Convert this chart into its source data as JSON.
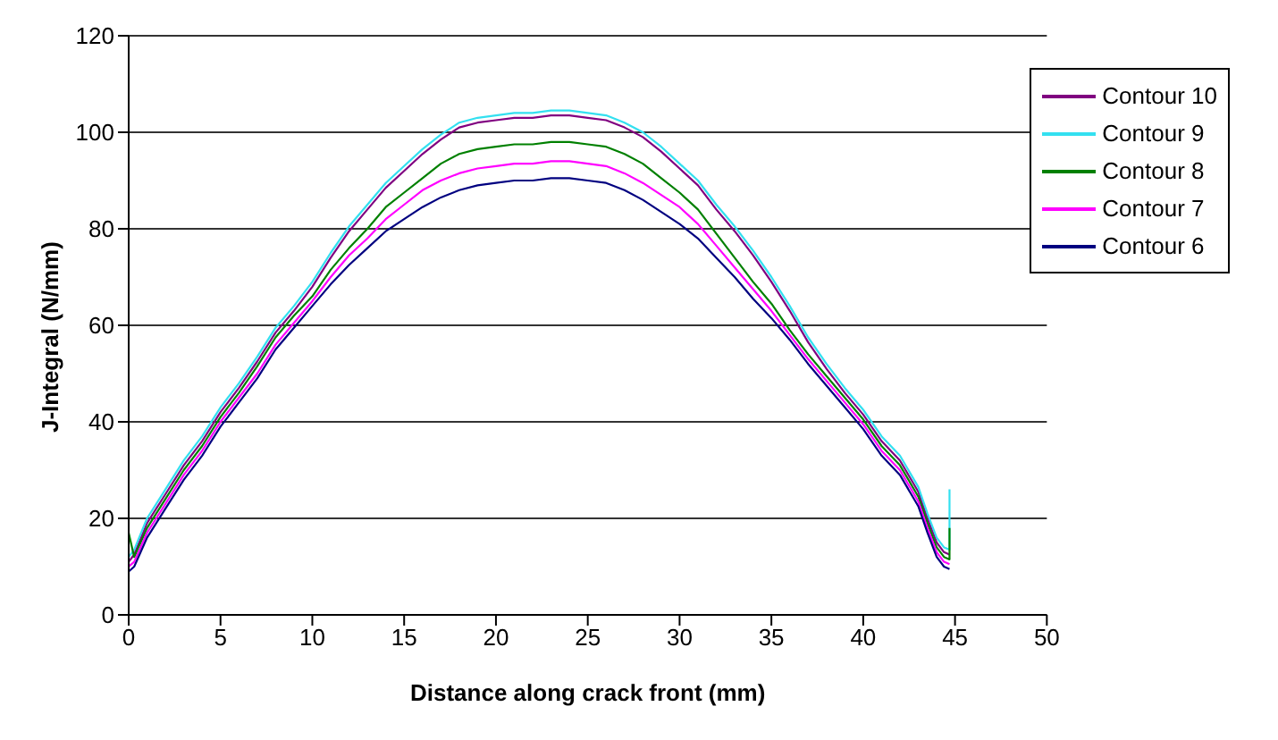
{
  "chart_data": {
    "type": "line",
    "xlabel": "Distance along crack front (mm)",
    "ylabel": "J-Integral (N/mm)",
    "x": [
      0,
      0.3,
      1,
      1.5,
      2,
      3,
      4,
      5,
      6,
      7,
      8,
      9,
      10,
      11,
      12,
      13,
      14,
      15,
      16,
      17,
      18,
      19,
      20,
      21,
      22,
      23,
      24,
      25,
      26,
      27,
      28,
      29,
      30,
      31,
      32,
      33,
      34,
      35,
      36,
      37,
      38,
      39,
      40,
      41,
      42,
      43,
      43.5,
      44,
      44.4,
      44.7,
      44.7
    ],
    "series": [
      {
        "name": "Contour 10",
        "color": "#800080",
        "values": [
          11,
          12.5,
          19,
          22,
          25,
          31,
          36,
          42,
          47,
          52.5,
          58.5,
          63,
          68,
          74,
          79.5,
          84,
          88.5,
          92,
          95.5,
          98.5,
          101,
          102,
          102.5,
          103,
          103,
          103.5,
          103.5,
          103,
          102.5,
          101,
          99,
          96,
          92.5,
          89,
          84,
          79.5,
          74.5,
          69,
          63,
          56.5,
          51,
          46,
          41.5,
          36,
          32,
          25.5,
          20,
          15,
          13,
          12.5,
          12.5
        ]
      },
      {
        "name": "Contour 9",
        "color": "#33e0f0",
        "values": [
          12,
          13.5,
          20,
          23,
          26,
          32,
          37,
          43,
          48,
          53.5,
          59.5,
          64,
          69,
          75,
          80.5,
          85,
          89.5,
          93,
          96.5,
          99.5,
          102,
          103,
          103.5,
          104,
          104,
          104.5,
          104.5,
          104,
          103.5,
          102,
          100,
          97,
          93.5,
          90,
          85,
          80.5,
          75.5,
          70,
          64,
          57.5,
          52,
          47,
          42.5,
          37,
          33,
          26.5,
          21,
          16,
          14,
          13.5,
          26
        ]
      },
      {
        "name": "Contour 8",
        "color": "#008000",
        "values": [
          17,
          12,
          18,
          21,
          24,
          30,
          35,
          41,
          46,
          51.5,
          57.5,
          62,
          66,
          71.5,
          76,
          80,
          84.5,
          87.5,
          90.5,
          93.5,
          95.5,
          96.5,
          97,
          97.5,
          97.5,
          98,
          98,
          97.5,
          97,
          95.5,
          93.5,
          90.5,
          87.5,
          84,
          79,
          74,
          69,
          64.5,
          59,
          54,
          49.5,
          45,
          40.5,
          35,
          31,
          24.5,
          19,
          14,
          12,
          11.5,
          18
        ]
      },
      {
        "name": "Contour 7",
        "color": "#ff00ff",
        "values": [
          10,
          11,
          17,
          20,
          23,
          29,
          34,
          40,
          45,
          50,
          56,
          60.5,
          65,
          70,
          74.5,
          78,
          82,
          85,
          88,
          90,
          91.5,
          92.5,
          93,
          93.5,
          93.5,
          94,
          94,
          93.5,
          93,
          91.5,
          89.5,
          87,
          84.5,
          81,
          76.5,
          72,
          67.5,
          63,
          58,
          53,
          48.5,
          44,
          39.5,
          34,
          30,
          23.5,
          18,
          13,
          11,
          10.5,
          10.5
        ]
      },
      {
        "name": "Contour 6",
        "color": "#000080",
        "values": [
          9,
          10,
          16,
          19,
          22,
          28,
          33,
          39,
          44,
          49,
          55,
          59.5,
          64,
          68.5,
          72.5,
          76,
          79.5,
          82,
          84.5,
          86.5,
          88,
          89,
          89.5,
          90,
          90,
          90.5,
          90.5,
          90,
          89.5,
          88,
          86,
          83.5,
          81,
          78,
          74,
          70,
          65.5,
          61.5,
          57,
          52,
          47.5,
          43,
          38.5,
          33,
          29,
          22.5,
          17,
          12,
          10,
          9.5,
          9.5
        ]
      }
    ],
    "xlim": [
      0,
      50
    ],
    "xticks": [
      0,
      5,
      10,
      15,
      20,
      25,
      30,
      35,
      40,
      45,
      50
    ],
    "ylim": [
      0,
      120
    ],
    "yticks": [
      0,
      20,
      40,
      60,
      80,
      100,
      120
    ],
    "grid": "y",
    "legend": "top right",
    "marker": "none",
    "line_style": "solid"
  }
}
